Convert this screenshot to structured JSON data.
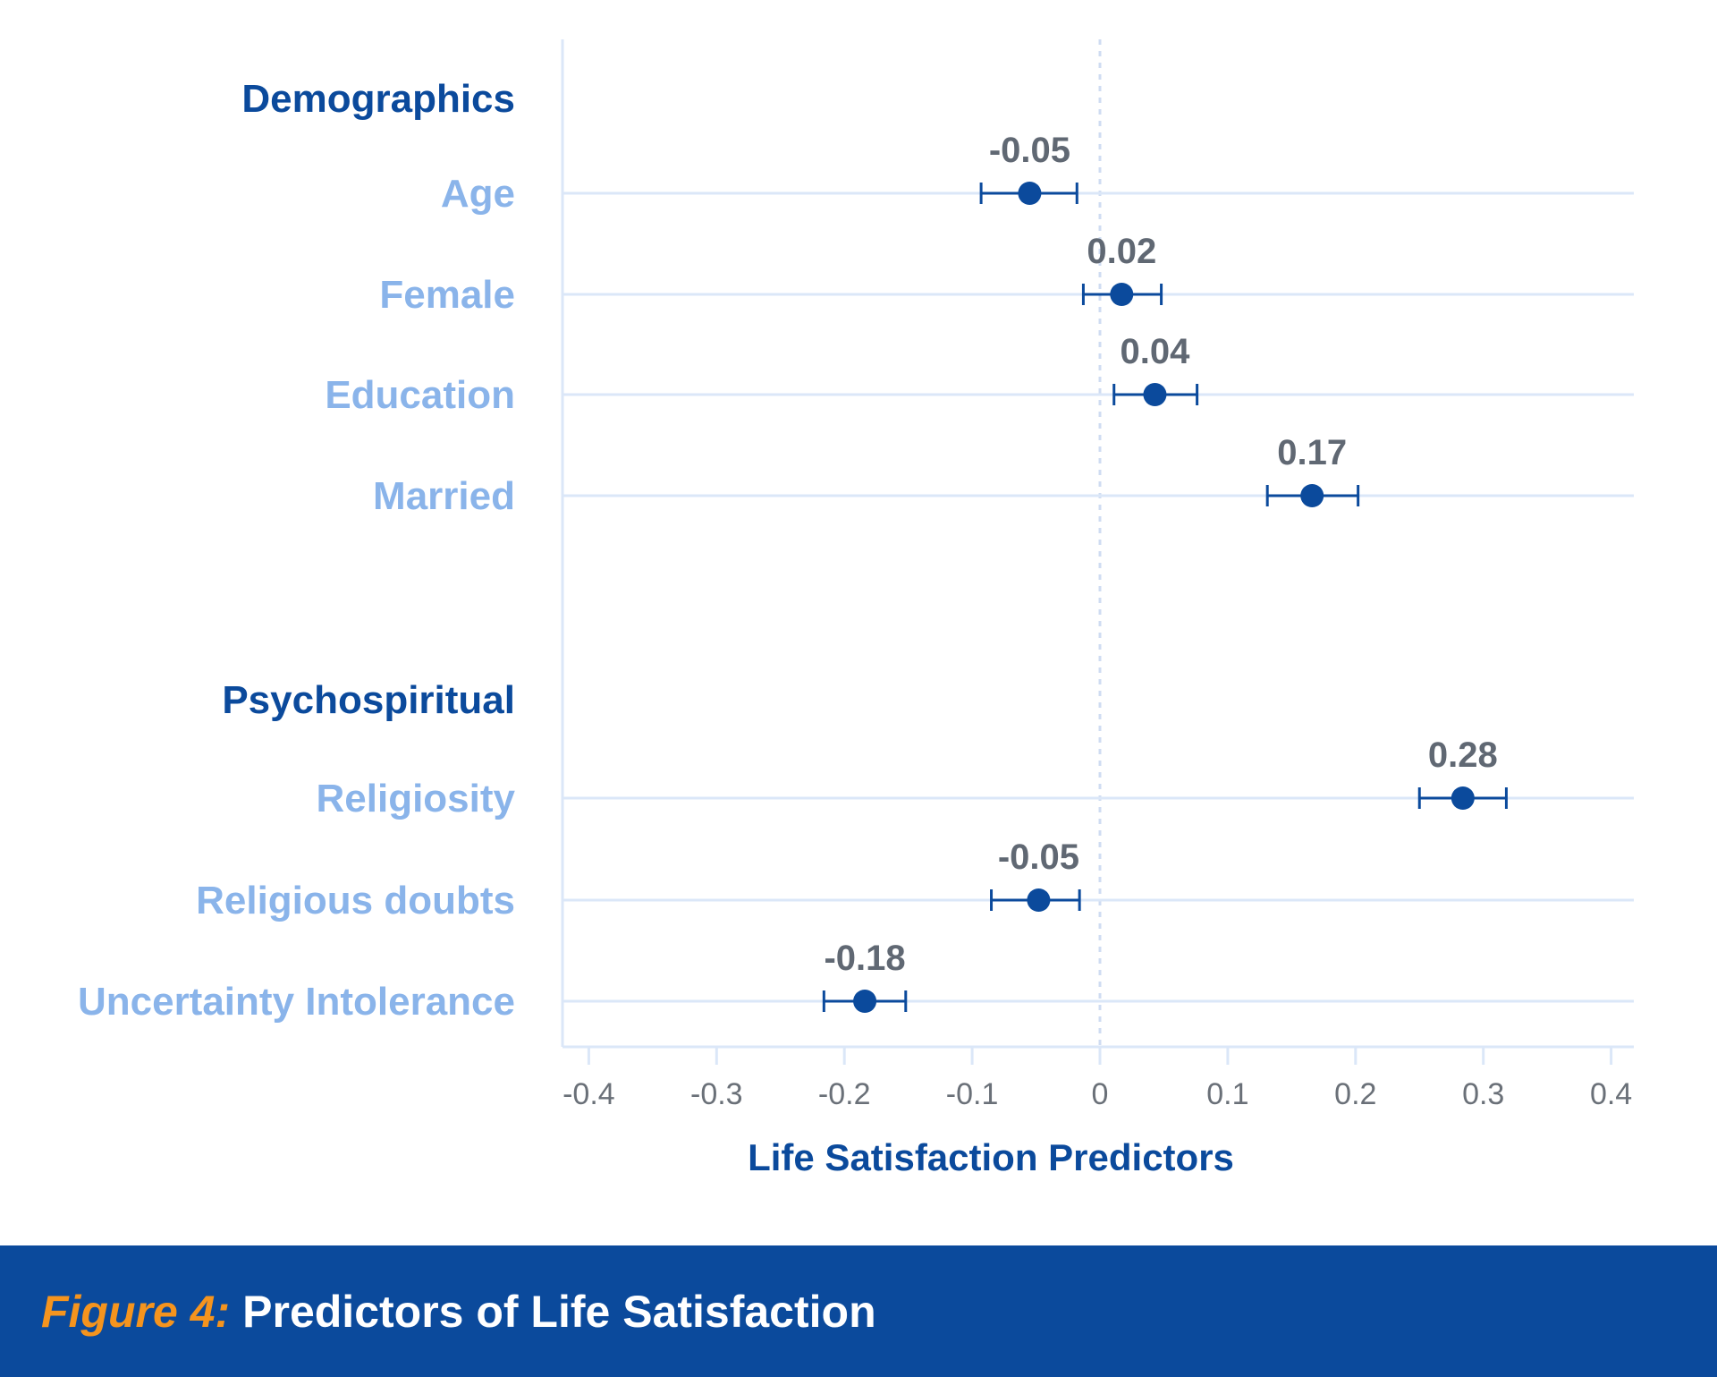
{
  "chart_data": {
    "type": "scatter",
    "subtype": "coefficient-plot-with-error-bars",
    "xlabel": "Life Satisfaction Predictors",
    "xlim": [
      -0.42,
      0.42
    ],
    "xticks": [
      -0.4,
      -0.3,
      -0.2,
      -0.1,
      0,
      0.1,
      0.2,
      0.3,
      0.4
    ],
    "xtick_labels": [
      "-0.4",
      "-0.3",
      "-0.2",
      "-0.1",
      "0",
      "0.1",
      "0.2",
      "0.3",
      "0.4"
    ],
    "reference_line": 0,
    "groups": [
      {
        "label": "Demographics",
        "items": [
          {
            "label": "Age",
            "value": -0.055,
            "ci": [
              -0.093,
              -0.018
            ],
            "value_label": "-0.05"
          },
          {
            "label": "Female",
            "value": 0.017,
            "ci": [
              -0.013,
              0.048
            ],
            "value_label": "0.02"
          },
          {
            "label": "Education",
            "value": 0.043,
            "ci": [
              0.011,
              0.076
            ],
            "value_label": "0.04"
          },
          {
            "label": "Married",
            "value": 0.166,
            "ci": [
              0.131,
              0.202
            ],
            "value_label": "0.17"
          }
        ]
      },
      {
        "label": "Psychospiritual",
        "items": [
          {
            "label": "Religiosity",
            "value": 0.284,
            "ci": [
              0.25,
              0.318
            ],
            "value_label": "0.28"
          },
          {
            "label": "Religious doubts",
            "value": -0.048,
            "ci": [
              -0.085,
              -0.016
            ],
            "value_label": "-0.05"
          },
          {
            "label": "Uncertainty Intolerance",
            "value": -0.184,
            "ci": [
              -0.216,
              -0.152
            ],
            "value_label": "-0.18"
          }
        ]
      }
    ],
    "colors": {
      "marker": "#0b4a9c",
      "group_label": "#0b4a9c",
      "category_label": "#8ab4ea",
      "value_label": "#606873",
      "gridline": "#dbe7f8",
      "reference_line": "#cfdcf2"
    }
  },
  "caption": {
    "prefix": "Figure 4:",
    "text": "Predictors of Life Satisfaction",
    "prefix_color": "#f5941e",
    "background_color": "#0b4a9c"
  }
}
